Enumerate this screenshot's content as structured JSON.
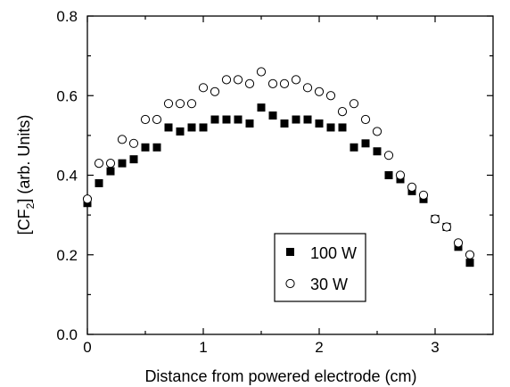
{
  "chart_data": {
    "type": "scatter",
    "title": "",
    "xlabel": "Distance from powered electrode (cm)",
    "ylabel": "[CF",
    "ylabel_sub": "2",
    "ylabel_tail": "] (arb. Units)",
    "xlim": [
      0,
      3.5
    ],
    "ylim": [
      0,
      0.8
    ],
    "xticks": [
      "0",
      "1",
      "2",
      "3"
    ],
    "yticks": [
      "0.0",
      "0.2",
      "0.4",
      "0.6",
      "0.8"
    ],
    "grid": false,
    "legend_position": "lower-right",
    "series": [
      {
        "name": "100 W",
        "marker": "filled-square",
        "x": [
          0,
          0.1,
          0.2,
          0.3,
          0.4,
          0.5,
          0.6,
          0.7,
          0.8,
          0.9,
          1.0,
          1.1,
          1.2,
          1.3,
          1.4,
          1.5,
          1.6,
          1.7,
          1.8,
          1.9,
          2.0,
          2.1,
          2.2,
          2.3,
          2.4,
          2.5,
          2.6,
          2.7,
          2.8,
          2.9,
          3.0,
          3.1,
          3.2,
          3.3
        ],
        "y": [
          0.33,
          0.38,
          0.41,
          0.43,
          0.44,
          0.47,
          0.47,
          0.52,
          0.51,
          0.52,
          0.52,
          0.54,
          0.54,
          0.54,
          0.53,
          0.57,
          0.55,
          0.53,
          0.54,
          0.54,
          0.53,
          0.52,
          0.52,
          0.47,
          0.48,
          0.46,
          0.4,
          0.39,
          0.36,
          0.34,
          0.29,
          0.27,
          0.22,
          0.18
        ]
      },
      {
        "name": "30 W",
        "marker": "open-circle",
        "x": [
          0,
          0.1,
          0.2,
          0.3,
          0.4,
          0.5,
          0.6,
          0.7,
          0.8,
          0.9,
          1.0,
          1.1,
          1.2,
          1.3,
          1.4,
          1.5,
          1.6,
          1.7,
          1.8,
          1.9,
          2.0,
          2.1,
          2.2,
          2.3,
          2.4,
          2.5,
          2.6,
          2.7,
          2.8,
          2.9,
          3.0,
          3.1,
          3.2,
          3.3
        ],
        "y": [
          0.34,
          0.43,
          0.43,
          0.49,
          0.48,
          0.54,
          0.54,
          0.58,
          0.58,
          0.58,
          0.62,
          0.61,
          0.64,
          0.64,
          0.63,
          0.66,
          0.63,
          0.63,
          0.64,
          0.62,
          0.61,
          0.6,
          0.56,
          0.58,
          0.54,
          0.51,
          0.45,
          0.4,
          0.37,
          0.35,
          0.29,
          0.27,
          0.23,
          0.2
        ]
      }
    ]
  },
  "colors": {
    "ink": "#000000",
    "background": "#ffffff"
  }
}
